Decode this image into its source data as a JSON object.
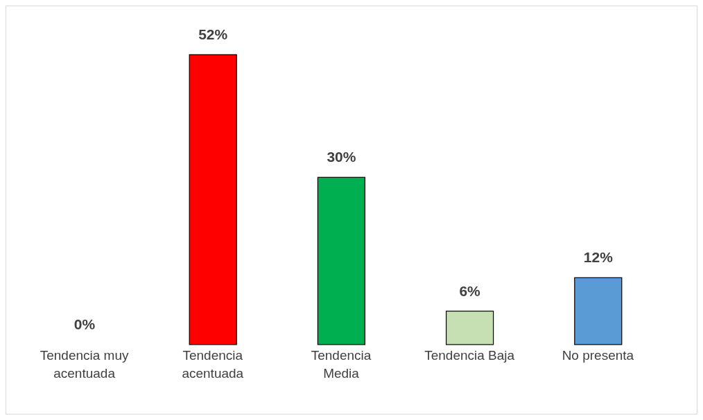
{
  "chart_data": {
    "type": "bar",
    "categories": [
      "Tendencia muy acentuada",
      "Tendencia acentuada",
      "Tendencia Media",
      "Tendencia Baja",
      "No presenta"
    ],
    "values": [
      0,
      52,
      30,
      6,
      12
    ],
    "colors": [
      "#44739f",
      "#ff0000",
      "#00b050",
      "#c6e0b4",
      "#5b9bd5"
    ],
    "value_labels": [
      "0%",
      "52%",
      "30%",
      "6%",
      "12%"
    ],
    "grid": false,
    "legend": false
  }
}
